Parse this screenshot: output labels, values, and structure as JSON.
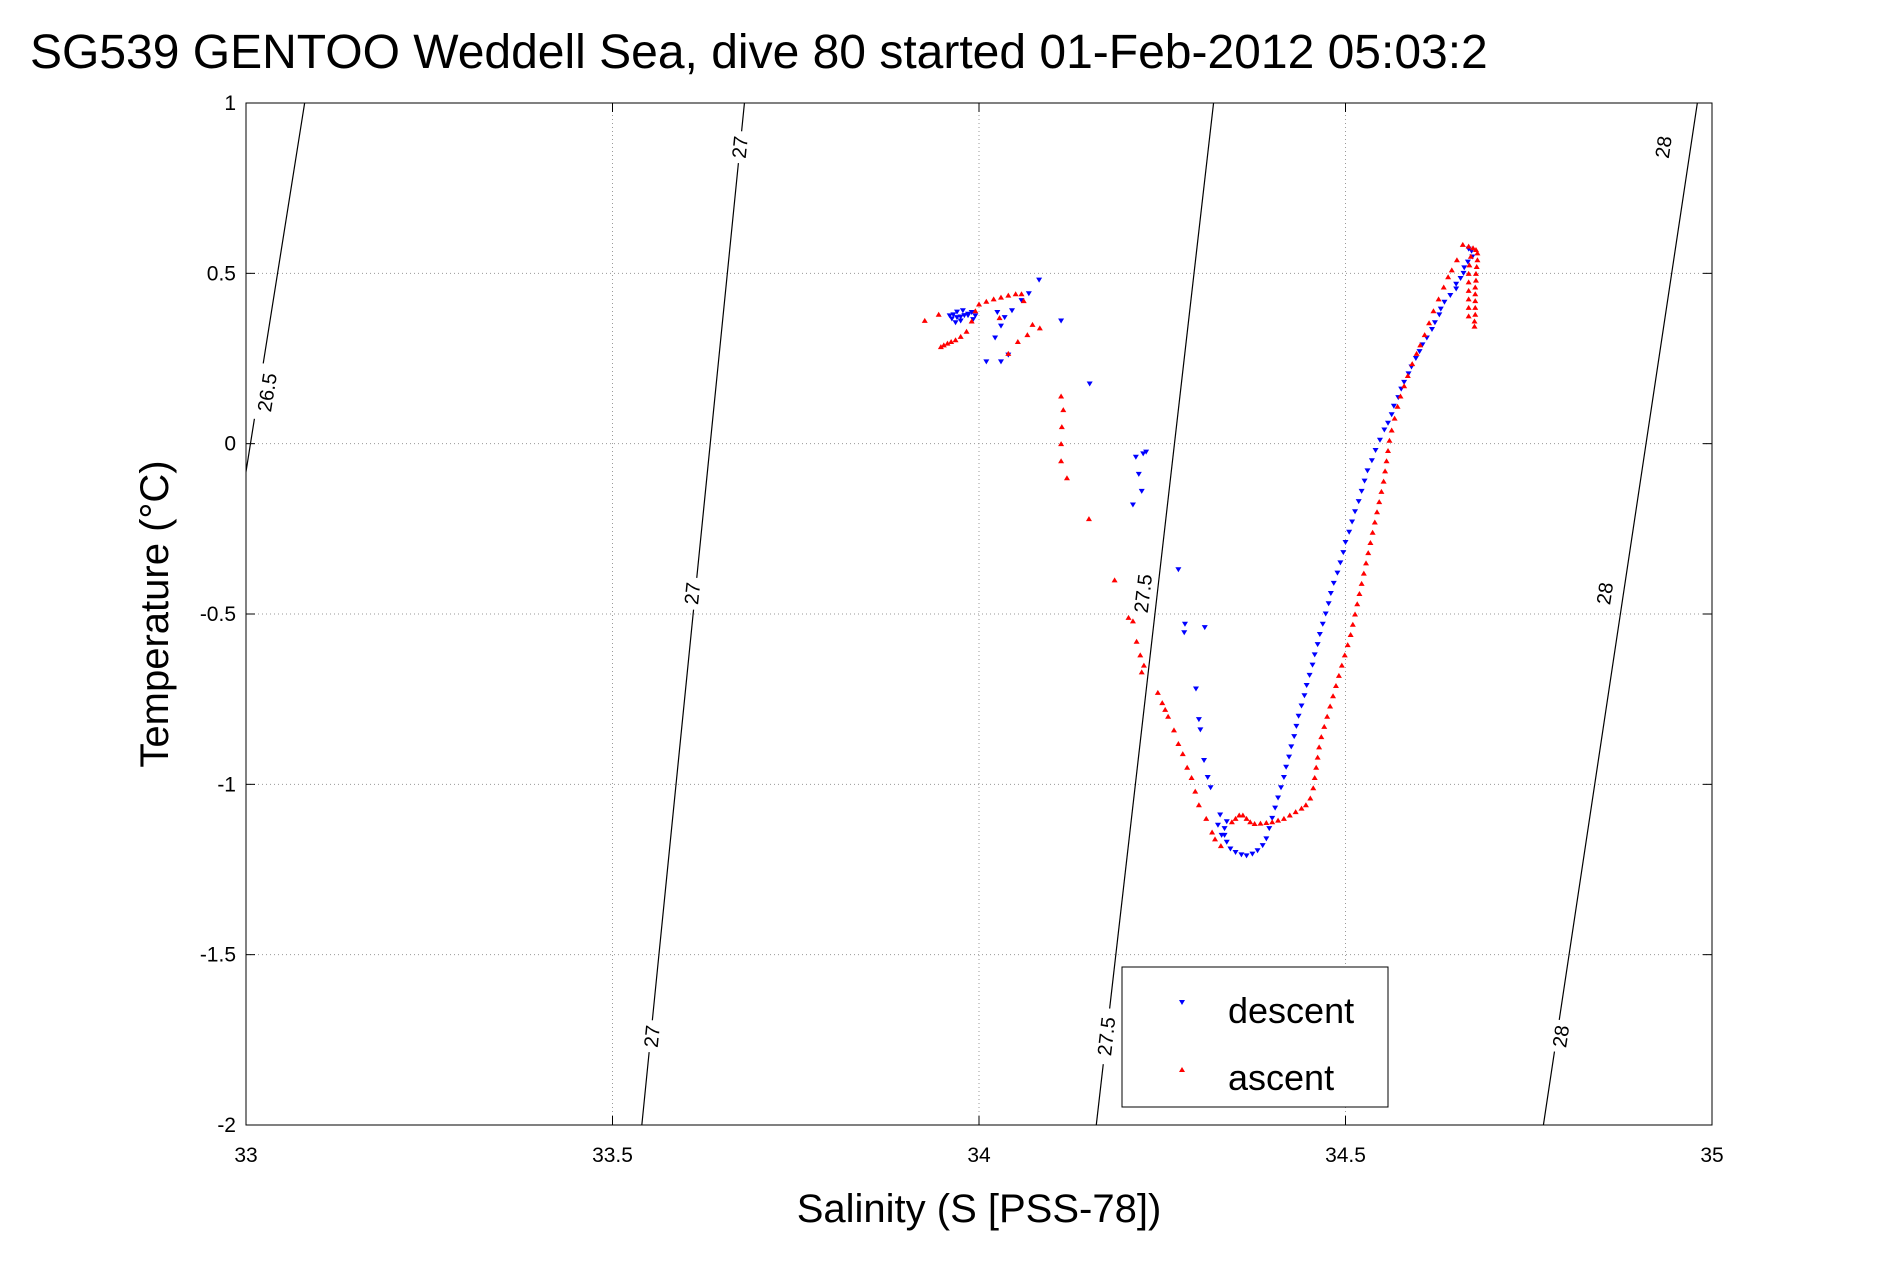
{
  "chart_data": {
    "type": "scatter",
    "title": "SG539 GENTOO Weddell Sea, dive 80 started 01-Feb-2012 05:03:2",
    "xlabel": "Salinity (S [PSS-78])",
    "ylabel": "Temperature (°C)",
    "xlim": [
      33,
      35
    ],
    "ylim": [
      -2,
      1
    ],
    "xticks": [
      33,
      33.5,
      34,
      34.5,
      35
    ],
    "xtick_labels": [
      "33",
      "33.5",
      "34",
      "34.5",
      "35"
    ],
    "yticks": [
      -2,
      -1.5,
      -1,
      -0.5,
      0,
      0.5,
      1
    ],
    "ytick_labels": [
      "-2",
      "-1.5",
      "-1",
      "-0.5",
      "0",
      "0.5",
      "1"
    ],
    "grid": true,
    "legend_position": "bottom-center",
    "density_contours": [
      {
        "label": "26.5",
        "points": [
          [
            33.08,
            1.0
          ],
          [
            32.995,
            -0.15
          ]
        ],
        "label_at": [
          [
            33.03,
            0.15
          ]
        ]
      },
      {
        "label": "27",
        "points": [
          [
            33.68,
            1.0
          ],
          [
            33.54,
            -2.0
          ]
        ],
        "label_at": [
          [
            33.675,
            0.87
          ],
          [
            33.61,
            -0.44
          ],
          [
            33.555,
            -1.74
          ]
        ]
      },
      {
        "label": "27.5",
        "points": [
          [
            34.32,
            1.0
          ],
          [
            34.16,
            -2.0
          ]
        ],
        "label_at": [
          [
            34.225,
            -0.44
          ],
          [
            34.175,
            -1.74
          ]
        ]
      },
      {
        "label": "28",
        "points": [
          [
            34.98,
            1.0
          ],
          [
            34.77,
            -2.0
          ]
        ],
        "label_at": [
          [
            34.935,
            0.87
          ],
          [
            34.855,
            -0.44
          ],
          [
            34.795,
            -1.74
          ]
        ]
      }
    ],
    "series": [
      {
        "name": "descent",
        "color": "#0000ff",
        "marker": "triangle-down",
        "points": [
          [
            34.668,
            0.571
          ],
          [
            34.672,
            0.565
          ],
          [
            34.673,
            0.548
          ],
          [
            34.667,
            0.533
          ],
          [
            34.662,
            0.516
          ],
          [
            34.661,
            0.5
          ],
          [
            34.657,
            0.485
          ],
          [
            34.651,
            0.468
          ],
          [
            34.651,
            0.454
          ],
          [
            34.643,
            0.435
          ],
          [
            34.635,
            0.415
          ],
          [
            34.63,
            0.395
          ],
          [
            34.628,
            0.378
          ],
          [
            34.622,
            0.355
          ],
          [
            34.618,
            0.335
          ],
          [
            34.611,
            0.31
          ],
          [
            34.605,
            0.29
          ],
          [
            34.601,
            0.27
          ],
          [
            34.596,
            0.25
          ],
          [
            34.59,
            0.225
          ],
          [
            34.586,
            0.205
          ],
          [
            34.58,
            0.18
          ],
          [
            34.576,
            0.16
          ],
          [
            34.572,
            0.135
          ],
          [
            34.566,
            0.11
          ],
          [
            34.563,
            0.085
          ],
          [
            34.558,
            0.06
          ],
          [
            34.553,
            0.04
          ],
          [
            34.547,
            0.01
          ],
          [
            34.541,
            -0.02
          ],
          [
            34.536,
            -0.05
          ],
          [
            34.53,
            -0.08
          ],
          [
            34.526,
            -0.11
          ],
          [
            34.522,
            -0.14
          ],
          [
            34.518,
            -0.17
          ],
          [
            34.513,
            -0.2
          ],
          [
            34.509,
            -0.23
          ],
          [
            34.505,
            -0.26
          ],
          [
            34.5,
            -0.29
          ],
          [
            34.497,
            -0.32
          ],
          [
            34.493,
            -0.35
          ],
          [
            34.489,
            -0.38
          ],
          [
            34.484,
            -0.41
          ],
          [
            34.48,
            -0.44
          ],
          [
            34.477,
            -0.47
          ],
          [
            34.473,
            -0.5
          ],
          [
            34.469,
            -0.53
          ],
          [
            34.465,
            -0.56
          ],
          [
            34.462,
            -0.59
          ],
          [
            34.458,
            -0.62
          ],
          [
            34.455,
            -0.65
          ],
          [
            34.451,
            -0.68
          ],
          [
            34.447,
            -0.71
          ],
          [
            34.444,
            -0.74
          ],
          [
            34.44,
            -0.77
          ],
          [
            34.436,
            -0.8
          ],
          [
            34.433,
            -0.83
          ],
          [
            34.43,
            -0.86
          ],
          [
            34.426,
            -0.89
          ],
          [
            34.423,
            -0.92
          ],
          [
            34.419,
            -0.95
          ],
          [
            34.416,
            -0.98
          ],
          [
            34.412,
            -1.01
          ],
          [
            34.408,
            -1.04
          ],
          [
            34.404,
            -1.07
          ],
          [
            34.4,
            -1.1
          ],
          [
            34.396,
            -1.13
          ],
          [
            34.392,
            -1.16
          ],
          [
            34.387,
            -1.18
          ],
          [
            34.38,
            -1.195
          ],
          [
            34.373,
            -1.205
          ],
          [
            34.365,
            -1.21
          ],
          [
            34.358,
            -1.207
          ],
          [
            34.35,
            -1.2
          ],
          [
            34.343,
            -1.19
          ],
          [
            34.338,
            -1.17
          ],
          [
            34.335,
            -1.15
          ],
          [
            34.335,
            -1.13
          ],
          [
            34.338,
            -1.11
          ],
          [
            34.331,
            -1.15
          ],
          [
            34.326,
            -1.12
          ],
          [
            34.329,
            -1.09
          ],
          [
            34.316,
            -1.01
          ],
          [
            34.312,
            -0.98
          ],
          [
            34.307,
            -0.93
          ],
          [
            34.302,
            -0.84
          ],
          [
            34.3,
            -0.81
          ],
          [
            34.296,
            -0.72
          ],
          [
            34.308,
            -0.54
          ],
          [
            34.281,
            -0.53
          ],
          [
            34.28,
            -0.555
          ],
          [
            34.272,
            -0.37
          ],
          [
            34.228,
            -0.025
          ],
          [
            34.224,
            -0.03
          ],
          [
            34.214,
            -0.04
          ],
          [
            34.218,
            -0.09
          ],
          [
            34.222,
            -0.14
          ],
          [
            34.21,
            -0.18
          ],
          [
            34.151,
            0.175
          ],
          [
            34.112,
            0.36
          ],
          [
            34.082,
            0.48
          ],
          [
            34.068,
            0.44
          ],
          [
            34.058,
            0.42
          ],
          [
            34.045,
            0.39
          ],
          [
            34.035,
            0.37
          ],
          [
            34.025,
            0.385
          ],
          [
            34.03,
            0.345
          ],
          [
            34.022,
            0.31
          ],
          [
            34.04,
            0.26
          ],
          [
            34.03,
            0.24
          ],
          [
            34.01,
            0.24
          ],
          [
            33.995,
            0.375
          ],
          [
            33.99,
            0.385
          ],
          [
            33.985,
            0.38
          ],
          [
            33.98,
            0.376
          ],
          [
            33.975,
            0.372
          ],
          [
            33.97,
            0.37
          ],
          [
            33.963,
            0.366
          ],
          [
            33.965,
            0.378
          ],
          [
            33.97,
            0.386
          ],
          [
            33.978,
            0.39
          ],
          [
            33.985,
            0.376
          ],
          [
            33.992,
            0.364
          ],
          [
            33.975,
            0.36
          ],
          [
            33.968,
            0.355
          ],
          [
            33.96,
            0.375
          ]
        ]
      },
      {
        "name": "ascent",
        "color": "#ff0000",
        "marker": "triangle-up",
        "points": [
          [
            34.66,
            0.585
          ],
          [
            34.668,
            0.58
          ],
          [
            34.674,
            0.575
          ],
          [
            34.678,
            0.57
          ],
          [
            34.68,
            0.56
          ],
          [
            34.68,
            0.54
          ],
          [
            34.679,
            0.52
          ],
          [
            34.678,
            0.5
          ],
          [
            34.678,
            0.48
          ],
          [
            34.677,
            0.46
          ],
          [
            34.677,
            0.44
          ],
          [
            34.677,
            0.42
          ],
          [
            34.677,
            0.4
          ],
          [
            34.677,
            0.38
          ],
          [
            34.676,
            0.36
          ],
          [
            34.676,
            0.345
          ],
          [
            34.671,
            0.55
          ],
          [
            34.669,
            0.525
          ],
          [
            34.668,
            0.5
          ],
          [
            34.668,
            0.475
          ],
          [
            34.668,
            0.45
          ],
          [
            34.668,
            0.425
          ],
          [
            34.668,
            0.4
          ],
          [
            34.668,
            0.375
          ],
          [
            34.652,
            0.54
          ],
          [
            34.645,
            0.51
          ],
          [
            34.64,
            0.49
          ],
          [
            34.634,
            0.46
          ],
          [
            34.627,
            0.425
          ],
          [
            34.62,
            0.39
          ],
          [
            34.614,
            0.355
          ],
          [
            34.608,
            0.32
          ],
          [
            34.602,
            0.29
          ],
          [
            34.597,
            0.265
          ],
          [
            34.591,
            0.235
          ],
          [
            34.585,
            0.2
          ],
          [
            34.58,
            0.17
          ],
          [
            34.575,
            0.14
          ],
          [
            34.571,
            0.11
          ],
          [
            34.567,
            0.075
          ],
          [
            34.563,
            0.04
          ],
          [
            34.56,
            0.01
          ],
          [
            34.558,
            -0.02
          ],
          [
            34.556,
            -0.05
          ],
          [
            34.554,
            -0.08
          ],
          [
            34.552,
            -0.11
          ],
          [
            34.549,
            -0.14
          ],
          [
            34.546,
            -0.17
          ],
          [
            34.543,
            -0.2
          ],
          [
            34.54,
            -0.23
          ],
          [
            34.537,
            -0.26
          ],
          [
            34.534,
            -0.29
          ],
          [
            34.531,
            -0.32
          ],
          [
            34.528,
            -0.35
          ],
          [
            34.525,
            -0.38
          ],
          [
            34.522,
            -0.41
          ],
          [
            34.519,
            -0.44
          ],
          [
            34.516,
            -0.47
          ],
          [
            34.513,
            -0.5
          ],
          [
            34.51,
            -0.53
          ],
          [
            34.507,
            -0.56
          ],
          [
            34.503,
            -0.59
          ],
          [
            34.499,
            -0.62
          ],
          [
            34.495,
            -0.65
          ],
          [
            34.491,
            -0.68
          ],
          [
            34.487,
            -0.71
          ],
          [
            34.483,
            -0.74
          ],
          [
            34.479,
            -0.77
          ],
          [
            34.475,
            -0.8
          ],
          [
            34.471,
            -0.83
          ],
          [
            34.467,
            -0.86
          ],
          [
            34.464,
            -0.89
          ],
          [
            34.462,
            -0.92
          ],
          [
            34.46,
            -0.95
          ],
          [
            34.458,
            -0.98
          ],
          [
            34.456,
            -1.01
          ],
          [
            34.452,
            -1.04
          ],
          [
            34.446,
            -1.06
          ],
          [
            34.44,
            -1.07
          ],
          [
            34.432,
            -1.08
          ],
          [
            34.424,
            -1.09
          ],
          [
            34.416,
            -1.1
          ],
          [
            34.408,
            -1.105
          ],
          [
            34.4,
            -1.11
          ],
          [
            34.392,
            -1.112
          ],
          [
            34.384,
            -1.114
          ],
          [
            34.376,
            -1.115
          ],
          [
            34.37,
            -1.11
          ],
          [
            34.365,
            -1.1
          ],
          [
            34.36,
            -1.09
          ],
          [
            34.355,
            -1.09
          ],
          [
            34.35,
            -1.1
          ],
          [
            34.345,
            -1.11
          ],
          [
            34.33,
            -1.18
          ],
          [
            34.322,
            -1.16
          ],
          [
            34.318,
            -1.14
          ],
          [
            34.31,
            -1.1
          ],
          [
            34.3,
            -1.06
          ],
          [
            34.295,
            -1.02
          ],
          [
            34.29,
            -0.98
          ],
          [
            34.284,
            -0.95
          ],
          [
            34.278,
            -0.91
          ],
          [
            34.272,
            -0.88
          ],
          [
            34.266,
            -0.84
          ],
          [
            34.258,
            -0.8
          ],
          [
            34.254,
            -0.78
          ],
          [
            34.25,
            -0.76
          ],
          [
            34.244,
            -0.73
          ],
          [
            34.222,
            -0.67
          ],
          [
            34.225,
            -0.65
          ],
          [
            34.22,
            -0.62
          ],
          [
            34.215,
            -0.58
          ],
          [
            34.21,
            -0.52
          ],
          [
            34.204,
            -0.51
          ],
          [
            34.185,
            -0.4
          ],
          [
            34.15,
            -0.22
          ],
          [
            34.12,
            -0.1
          ],
          [
            34.112,
            -0.05
          ],
          [
            34.112,
            0.0
          ],
          [
            34.113,
            0.05
          ],
          [
            34.115,
            0.1
          ],
          [
            34.112,
            0.14
          ],
          [
            34.083,
            0.34
          ],
          [
            34.073,
            0.35
          ],
          [
            34.066,
            0.32
          ],
          [
            34.061,
            0.42
          ],
          [
            34.058,
            0.44
          ],
          [
            34.05,
            0.44
          ],
          [
            34.04,
            0.436
          ],
          [
            34.03,
            0.43
          ],
          [
            34.02,
            0.425
          ],
          [
            34.01,
            0.418
          ],
          [
            34.0,
            0.41
          ],
          [
            33.995,
            0.39
          ],
          [
            33.99,
            0.36
          ],
          [
            33.983,
            0.33
          ],
          [
            33.975,
            0.315
          ],
          [
            33.968,
            0.305
          ],
          [
            33.962,
            0.3
          ],
          [
            33.957,
            0.295
          ],
          [
            33.952,
            0.29
          ],
          [
            33.948,
            0.285
          ],
          [
            33.926,
            0.362
          ],
          [
            33.945,
            0.38
          ],
          [
            34.028,
            0.37
          ],
          [
            34.04,
            0.265
          ],
          [
            34.053,
            0.3
          ]
        ]
      }
    ]
  }
}
